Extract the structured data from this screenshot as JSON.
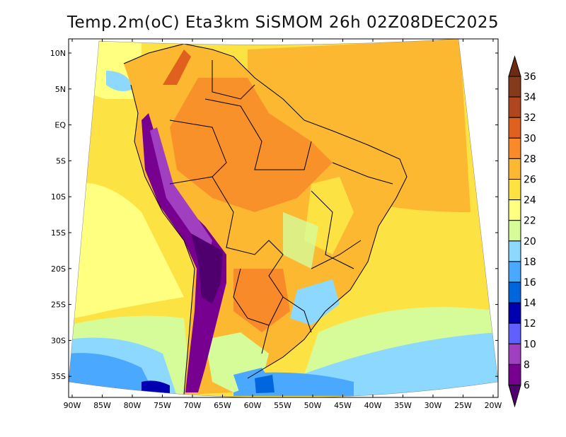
{
  "title": "Temp.2m(oC) Eta3km SiSMOM 26h 02Z08DEC2025",
  "map": {
    "variable": "2m temperature",
    "units": "oC",
    "lat_labels": [
      "10N",
      "5N",
      "EQ",
      "5S",
      "10S",
      "15S",
      "20S",
      "25S",
      "30S",
      "35S"
    ],
    "lon_labels": [
      "90W",
      "85W",
      "80W",
      "75W",
      "70W",
      "65W",
      "60W",
      "55W",
      "50W",
      "45W",
      "40W",
      "35W",
      "30W",
      "25W",
      "20W"
    ]
  },
  "colorbar": {
    "labels": [
      "36",
      "34",
      "32",
      "30",
      "28",
      "26",
      "24",
      "22",
      "20",
      "18",
      "16",
      "14",
      "12",
      "10",
      "8",
      "6"
    ],
    "colors": [
      "#6b2c12",
      "#853a1c",
      "#b04620",
      "#e0601e",
      "#f88a2a",
      "#fbb830",
      "#fde244",
      "#ffff80",
      "#d6fc9a",
      "#8cd8ff",
      "#4ba8ff",
      "#0066dd",
      "#0000b0",
      "#6060ff",
      "#a040c0",
      "#780090",
      "#50006e"
    ]
  }
}
